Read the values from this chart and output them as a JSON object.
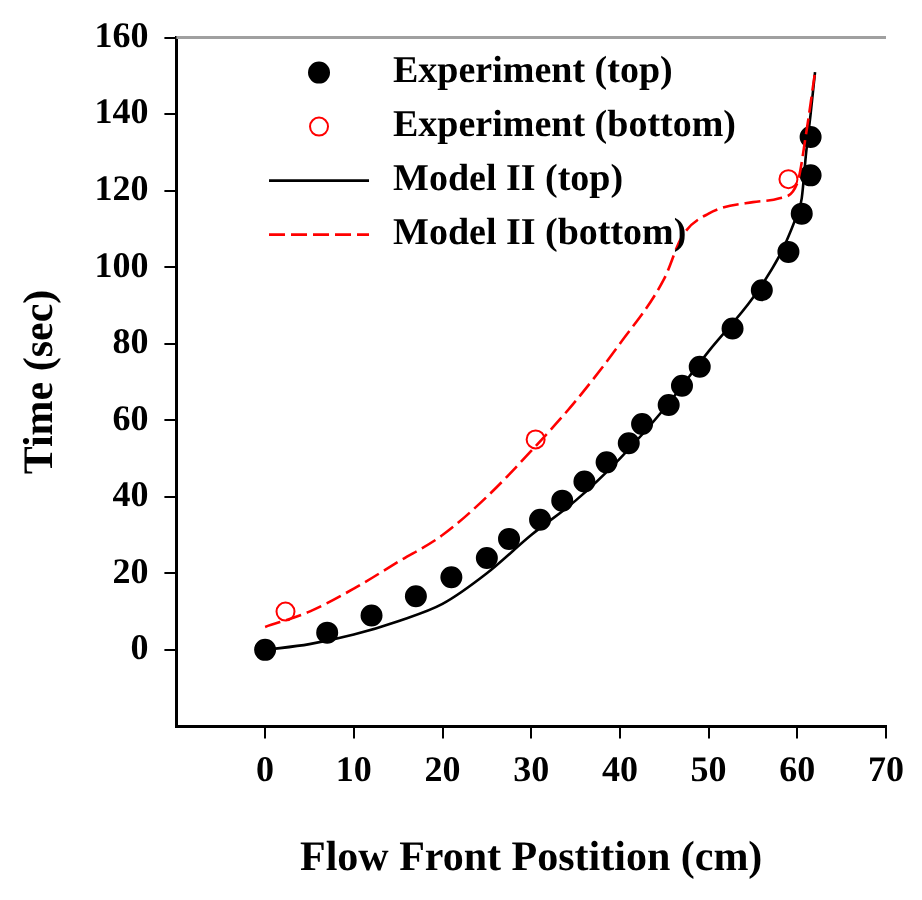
{
  "chart_data": {
    "type": "scatter",
    "xlabel": "Flow Front Postition (cm)",
    "ylabel": "Time (sec)",
    "xlim": [
      -10,
      70
    ],
    "xticks": [
      0,
      10,
      20,
      30,
      40,
      50,
      60,
      70
    ],
    "ylim": [
      -20,
      160
    ],
    "yticks": [
      0,
      20,
      40,
      60,
      80,
      100,
      120,
      140,
      160
    ],
    "grid": false,
    "legend": "top right",
    "series": [
      {
        "name": "Experiment (top)",
        "type": "scatter",
        "marker": "circle",
        "color": "#000000",
        "x": [
          0,
          7,
          12,
          17,
          21,
          25,
          27.5,
          31,
          33.5,
          36,
          38.5,
          41,
          42.5,
          45.5,
          47,
          49,
          52.7,
          56,
          59,
          60.5,
          61.5,
          61.5
        ],
        "values": [
          0,
          4.5,
          9,
          14,
          19,
          24,
          29,
          34,
          39,
          44,
          49,
          54,
          59,
          64,
          69,
          74,
          84,
          94,
          104,
          114,
          124,
          134
        ]
      },
      {
        "name": "Experiment (bottom)",
        "type": "scatter",
        "marker": "circle",
        "color": "#ff0000",
        "x": [
          2.3,
          30.5,
          59
        ],
        "values": [
          10,
          55,
          123
        ]
      },
      {
        "name": "Model II (top)",
        "type": "line",
        "marker": "none",
        "line_style": "solid",
        "color": "#000000",
        "x": [
          0,
          5,
          10,
          15,
          20,
          25,
          30,
          35,
          40,
          45,
          50,
          55,
          58,
          59,
          60,
          60.5,
          61,
          61.5,
          62
        ],
        "values": [
          0,
          1.5,
          4,
          7.5,
          12,
          20,
          30,
          39,
          50,
          63,
          78,
          92,
          103,
          108,
          114,
          118,
          130,
          140,
          151
        ]
      },
      {
        "name": "Model II (bottom)",
        "type": "line",
        "marker": "none",
        "line_style": "dashed",
        "color": "#ff0000",
        "x": [
          0,
          5,
          10,
          15,
          20,
          25,
          30,
          35,
          40,
          45,
          47,
          50,
          55,
          58,
          60,
          61,
          62
        ],
        "values": [
          6,
          10,
          16,
          23,
          30,
          40,
          52,
          65,
          80,
          97,
          108,
          114,
          117,
          118,
          122,
          135,
          151
        ]
      }
    ]
  }
}
